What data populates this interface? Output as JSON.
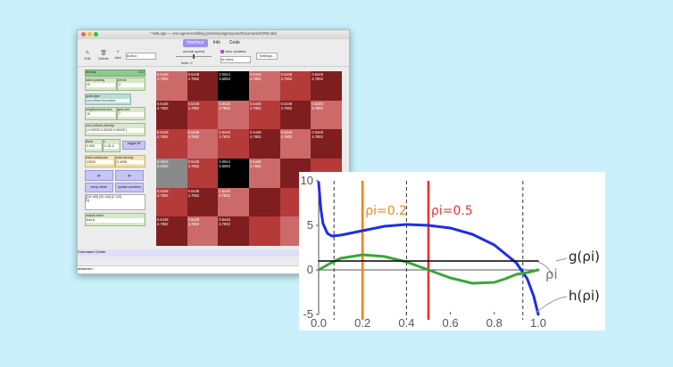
{
  "window": {
    "title": "* NetLogo — one-agent-schelling {/Users/jungmoyoon/Documents/CRIS lab}",
    "tabs": [
      {
        "label": "Interface",
        "active": true
      },
      {
        "label": "Info",
        "active": false
      },
      {
        "label": "Code",
        "active": false
      }
    ]
  },
  "toolbar": {
    "edit": "Edit",
    "delete": "Delete",
    "add": "Add",
    "widget_type": "Button",
    "speed_label": "normal speed",
    "ticks": "ticks: 0",
    "view_updates": "view updates",
    "update_mode": "on ticks",
    "settings": "Settings..."
  },
  "widgets": {
    "density": {
      "label": "density",
      "value": "0.07"
    },
    "label_spacing": {
      "label": "label-spacing",
      "value": "10"
    },
    "precis": {
      "label": "precis",
      "value": "3"
    },
    "quirk_type": {
      "label": "quirk-type",
      "value": "smoothed-resolution"
    },
    "neighborhood_size": {
      "label": "neighborhood-size",
      "value": "10"
    },
    "grid_size": {
      "label": "grid-size",
      "value": "7"
    },
    "non_uniform_density": {
      "label": "non-uniform-density",
      "value": "[ 0.00025 0.00025 0.00025 ]"
    },
    "theta": {
      "label": "theta",
      "value": "0.005"
    },
    "lambda": {
      "label": "λ",
      "value": "1.1E-6"
    },
    "toggle_label": "toggle-lbl",
    "total_individuals": {
      "label": "total-individuals",
      "value": "43000"
    },
    "total_density": {
      "label": "total-density",
      "value": "0.4998"
    },
    "go_once": "go",
    "go": "go",
    "setup_clean": "setup-clean",
    "update_numbers": "update-numbers",
    "list_output": "[[15 183] [35 143] [2 142]",
    "list_output_2": "[1]",
    "output_name": {
      "label": "output-name",
      "value": "test-6"
    }
  },
  "world": {
    "cells": [
      [
        [
          "0.5448",
          "4.7802"
        ],
        [
          "0.5448",
          "4.7802"
        ],
        [
          "0.0044",
          "5.5093"
        ],
        [
          "0.5448",
          "4.7802"
        ],
        [
          "0.5448",
          "4.7802"
        ],
        [
          "0.5448",
          "4.7802"
        ]
      ],
      [
        [
          "0.5448",
          "4.7802"
        ],
        [
          "0.5448",
          "4.7802"
        ],
        [
          "0.5448",
          "4.7802"
        ],
        [
          "0.5448",
          "4.7802"
        ],
        [
          "0.5448",
          "4.7802"
        ],
        [
          "0.5448",
          "4.7802"
        ]
      ],
      [
        [
          "0.5448",
          "4.7802"
        ],
        [
          "0.5448",
          "4.7802"
        ],
        [
          "0.5448",
          "4.7802"
        ],
        [
          "0.5448",
          "4.7802"
        ],
        [
          "0.5448",
          "4.7802"
        ],
        [
          "0.5448",
          "4.7802"
        ]
      ],
      [
        [
          "0.0044",
          "5.5093"
        ],
        [
          "0.5448",
          "4.7802"
        ],
        [
          "0.0044",
          "5.5093"
        ],
        [
          "0.5448",
          "4.7802"
        ],
        [
          "",
          ""
        ],
        [
          "",
          ""
        ]
      ],
      [
        [
          "0.5448",
          "4.7802"
        ],
        [
          "0.5448",
          "4.7802"
        ],
        [
          "0.5448",
          "4.7802"
        ],
        [
          "",
          ""
        ],
        [
          "",
          ""
        ],
        [
          "",
          ""
        ]
      ],
      [
        [
          "0.5448",
          "4.7802"
        ],
        [
          "0.5448",
          "4.7802"
        ],
        [
          "0.5448",
          "4.7802"
        ],
        [
          "",
          ""
        ],
        [
          "",
          ""
        ],
        [
          "",
          ""
        ]
      ]
    ]
  },
  "command_center": {
    "label": "Command Center",
    "observer": "observer>"
  },
  "chart_data": {
    "type": "line",
    "title": "",
    "xlabel": "",
    "ylabel": "",
    "xlim": [
      0.0,
      1.0
    ],
    "ylim": [
      -5,
      10
    ],
    "x_ticks": [
      "0.0",
      "0.2",
      "0.4",
      "0.6",
      "0.8",
      "1.0"
    ],
    "y_ticks": [
      "-5",
      "0",
      "5",
      "10"
    ],
    "series": [
      {
        "name": "h(ρi)",
        "color": "#1f2ee6",
        "x": [
          0.0,
          0.01,
          0.02,
          0.04,
          0.06,
          0.1,
          0.2,
          0.3,
          0.4,
          0.5,
          0.6,
          0.7,
          0.8,
          0.9,
          0.95,
          0.98,
          1.0
        ],
        "y": [
          9.8,
          6.8,
          5.2,
          4.1,
          3.8,
          3.9,
          4.4,
          4.9,
          5.1,
          5.0,
          4.7,
          4.0,
          2.8,
          0.8,
          -1.0,
          -3.0,
          -5.0
        ]
      },
      {
        "name": "g(ρi)",
        "color": "#3aa63a",
        "x": [
          0.0,
          0.05,
          0.1,
          0.2,
          0.3,
          0.4,
          0.5,
          0.6,
          0.7,
          0.8,
          0.85,
          0.9,
          0.95,
          1.0
        ],
        "y": [
          0.0,
          0.7,
          1.3,
          1.7,
          1.5,
          0.9,
          0.0,
          -0.9,
          -1.5,
          -1.4,
          -1.0,
          -0.5,
          -0.3,
          0.0
        ]
      },
      {
        "name": "",
        "color": "#000000",
        "x": [
          0.0,
          1.0
        ],
        "y": [
          1.0,
          1.0
        ]
      }
    ],
    "vlines": [
      {
        "x": 0.2,
        "label": "ρi=0.2",
        "color": "#f0841a",
        "style": "solid"
      },
      {
        "x": 0.5,
        "label": "ρi=0.5",
        "color": "#e53232",
        "style": "solid"
      },
      {
        "x": 0.07,
        "label": "",
        "color": "#333333",
        "style": "dashed"
      },
      {
        "x": 0.4,
        "label": "",
        "color": "#333333",
        "style": "dashed"
      },
      {
        "x": 0.93,
        "label": "",
        "color": "#333333",
        "style": "dashed"
      }
    ],
    "annotations": [
      "ρi",
      "g(ρi)",
      "h(ρi)"
    ]
  }
}
